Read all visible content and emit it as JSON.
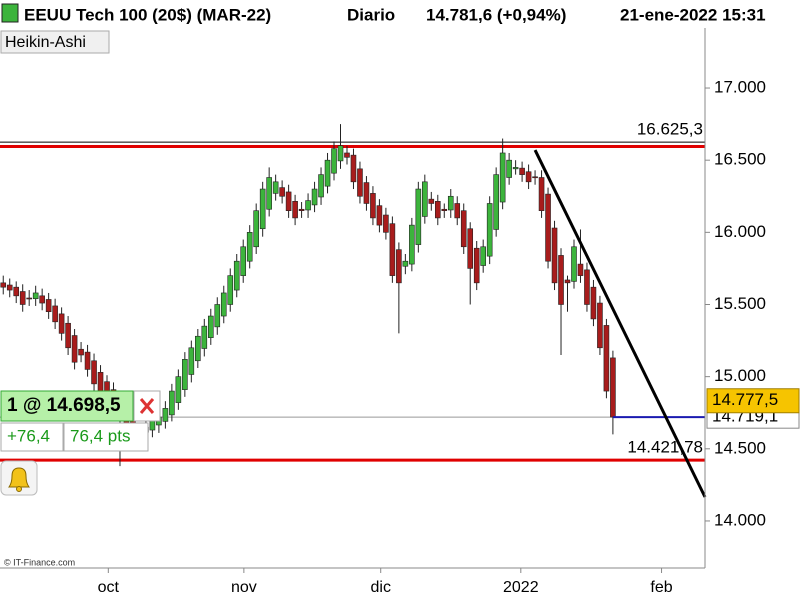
{
  "chart_data": {
    "type": "candlestick",
    "title": "EEUU Tech 100 (20$) (MAR-22)",
    "period": "Diario",
    "quote": "14.781,6 (+0,94%)",
    "datetime": "21-ene-2022 15:31",
    "style": "Heikin-Ashi",
    "credit": "© IT-Finance.com",
    "up_color": "#3cb43c",
    "down_color": "#a81c1c",
    "ylim": [
      13674,
      17416
    ],
    "yticks": [
      {
        "value": 14000,
        "label": "14.000"
      },
      {
        "value": 14500,
        "label": "14.500"
      },
      {
        "value": 15000,
        "label": "15.000"
      },
      {
        "value": 15500,
        "label": "15.500"
      },
      {
        "value": 16000,
        "label": "16.000"
      },
      {
        "value": 16500,
        "label": "16.500"
      },
      {
        "value": 17000,
        "label": "17.000"
      }
    ],
    "xlim": [
      -0.5,
      108.2
    ],
    "xticks": [
      {
        "value": 16.2,
        "label": "oct"
      },
      {
        "value": 37.1,
        "label": "nov"
      },
      {
        "value": 58.2,
        "label": "dic"
      },
      {
        "value": 79.8,
        "label": "2022"
      },
      {
        "value": 101.5,
        "label": "feb"
      }
    ],
    "candles": [
      [
        15650,
        15700,
        15570,
        15620
      ],
      [
        15635,
        15680,
        15550,
        15600
      ],
      [
        15620,
        15660,
        15510,
        15560
      ],
      [
        15590,
        15640,
        15450,
        15500
      ],
      [
        15545,
        15600,
        15490,
        15540
      ],
      [
        15540,
        15630,
        15490,
        15580
      ],
      [
        15560,
        15610,
        15460,
        15510
      ],
      [
        15535,
        15580,
        15400,
        15450
      ],
      [
        15490,
        15540,
        15330,
        15380
      ],
      [
        15435,
        15480,
        15250,
        15300
      ],
      [
        15370,
        15420,
        15150,
        15200
      ],
      [
        15285,
        15330,
        15050,
        15100
      ],
      [
        15190,
        15240,
        15100,
        15150
      ],
      [
        15170,
        15220,
        15000,
        15050
      ],
      [
        15110,
        15160,
        14900,
        14950
      ],
      [
        15030,
        15080,
        14850,
        14900
      ],
      [
        14965,
        15010,
        14800,
        14850
      ],
      [
        14910,
        14960,
        14730,
        14780
      ],
      [
        14845,
        14890,
        14380,
        14700
      ],
      [
        14770,
        14820,
        14570,
        14620
      ],
      [
        14695,
        14740,
        14510,
        14560
      ],
      [
        14630,
        14680,
        14550,
        14600
      ],
      [
        14615,
        14700,
        14570,
        14650
      ],
      [
        14630,
        14750,
        14580,
        14700
      ],
      [
        14665,
        14770,
        14610,
        14720
      ],
      [
        14690,
        14830,
        14640,
        14780
      ],
      [
        14735,
        14950,
        14690,
        14900
      ],
      [
        14820,
        15050,
        14770,
        15000
      ],
      [
        14910,
        15170,
        14860,
        15120
      ],
      [
        15015,
        15250,
        14960,
        15200
      ],
      [
        15110,
        15330,
        15060,
        15280
      ],
      [
        15195,
        15400,
        15140,
        15350
      ],
      [
        15270,
        15470,
        15220,
        15420
      ],
      [
        15345,
        15550,
        15290,
        15500
      ],
      [
        15420,
        15630,
        15370,
        15580
      ],
      [
        15500,
        15750,
        15450,
        15700
      ],
      [
        15600,
        15850,
        15550,
        15800
      ],
      [
        15700,
        15950,
        15650,
        15900
      ],
      [
        15800,
        16050,
        15750,
        16000
      ],
      [
        15900,
        16200,
        15850,
        16150
      ],
      [
        16025,
        16350,
        15970,
        16300
      ],
      [
        16160,
        16450,
        16110,
        16380
      ],
      [
        16270,
        16400,
        16220,
        16350
      ],
      [
        16310,
        16360,
        16200,
        16250
      ],
      [
        16280,
        16330,
        16100,
        16150
      ],
      [
        16215,
        16260,
        16050,
        16100
      ],
      [
        16160,
        16210,
        16100,
        16150
      ],
      [
        16155,
        16270,
        16100,
        16220
      ],
      [
        16190,
        16350,
        16140,
        16300
      ],
      [
        16245,
        16450,
        16190,
        16400
      ],
      [
        16320,
        16550,
        16270,
        16500
      ],
      [
        16410,
        16630,
        16360,
        16580
      ],
      [
        16495,
        16750,
        16440,
        16600
      ],
      [
        16550,
        16600,
        16470,
        16520
      ],
      [
        16535,
        16580,
        16300,
        16350
      ],
      [
        16440,
        16490,
        16200,
        16250
      ],
      [
        16345,
        16390,
        16150,
        16200
      ],
      [
        16270,
        16320,
        16050,
        16100
      ],
      [
        16185,
        16230,
        16000,
        16050
      ],
      [
        16120,
        16170,
        15950,
        16000
      ],
      [
        16060,
        16110,
        15650,
        15700
      ],
      [
        15880,
        15930,
        15300,
        15650
      ],
      [
        15765,
        15850,
        15710,
        15800
      ],
      [
        15780,
        16100,
        15730,
        16050
      ],
      [
        15915,
        16350,
        15860,
        16300
      ],
      [
        16110,
        16400,
        16060,
        16350
      ],
      [
        16230,
        16280,
        16150,
        16200
      ],
      [
        16215,
        16260,
        16050,
        16100
      ],
      [
        16160,
        16200,
        16100,
        16150
      ],
      [
        16155,
        16300,
        16100,
        16250
      ],
      [
        16200,
        16250,
        16050,
        16100
      ],
      [
        16150,
        16200,
        15850,
        15900
      ],
      [
        16025,
        16070,
        15500,
        15750
      ],
      [
        15890,
        15940,
        15600,
        15650
      ],
      [
        15770,
        15950,
        15720,
        15900
      ],
      [
        15835,
        16250,
        15780,
        16200
      ],
      [
        16020,
        16450,
        15970,
        16400
      ],
      [
        16210,
        16650,
        16160,
        16550
      ],
      [
        16380,
        16550,
        16330,
        16500
      ],
      [
        16440,
        16500,
        16400,
        16450
      ],
      [
        16445,
        16490,
        16350,
        16400
      ],
      [
        16420,
        16470,
        16300,
        16350
      ],
      [
        16385,
        16430,
        16330,
        16380
      ],
      [
        16380,
        16430,
        16100,
        16150
      ],
      [
        16265,
        16310,
        15750,
        15800
      ],
      [
        16030,
        16080,
        15600,
        15650
      ],
      [
        15840,
        15890,
        15150,
        15500
      ],
      [
        15670,
        15700,
        15450,
        15650
      ],
      [
        15660,
        15950,
        15610,
        15900
      ],
      [
        15780,
        16020,
        15650,
        15700
      ],
      [
        15740,
        15790,
        15450,
        15500
      ],
      [
        15620,
        15670,
        15350,
        15400
      ],
      [
        15510,
        15560,
        15150,
        15200
      ],
      [
        15355,
        15400,
        14850,
        14900
      ],
      [
        15130,
        15180,
        14600,
        14720
      ]
    ],
    "levels": [
      {
        "value": 16625.3,
        "label": "16.625,3",
        "color": "#000000"
      },
      {
        "value": 16595,
        "color": "#e00000"
      },
      {
        "value": 14421.78,
        "label": "14.421,78",
        "color": "#e00000"
      }
    ],
    "last_price": {
      "value": 14719.1,
      "label": "14.719,1"
    },
    "current_price": {
      "value": 14777.5,
      "label": "14.777,5"
    },
    "trendline": {
      "x": [
        82,
        108.2
      ],
      "y": [
        16570,
        14166
      ]
    },
    "position": {
      "order": "1 @ 14.698,5",
      "pnl": "+76,4",
      "pts": "76,4 pts"
    }
  }
}
